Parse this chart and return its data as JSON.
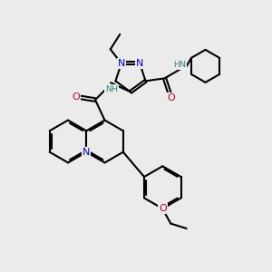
{
  "background_color": "#ebebeb",
  "atom_colors": {
    "C": "#000000",
    "N": "#0000cc",
    "O": "#cc0000",
    "H": "#2e8b8b"
  },
  "figsize": [
    3.0,
    3.0
  ],
  "dpi": 100
}
